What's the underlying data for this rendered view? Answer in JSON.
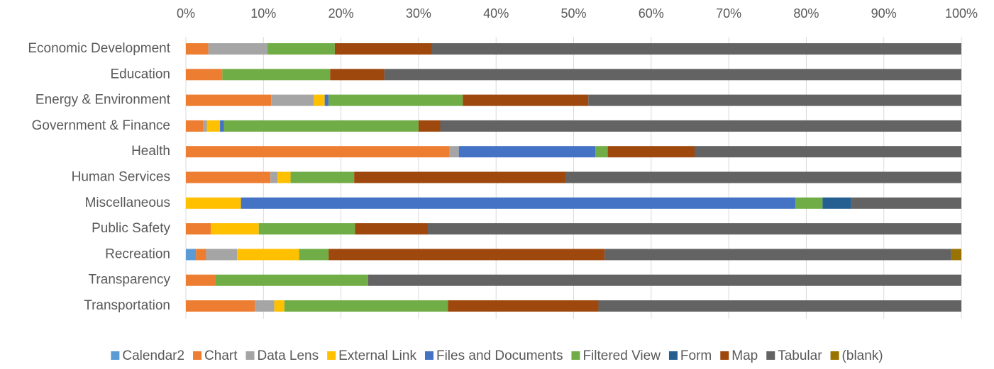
{
  "chart_data": {
    "type": "stacked_barh",
    "categories": [
      "Economic Development",
      "Education",
      "Energy & Environment",
      "Government & Finance",
      "Health",
      "Human Services",
      "Miscellaneous",
      "Public Safety",
      "Recreation",
      "Transparency",
      "Transportation"
    ],
    "series": [
      {
        "name": "Calendar2",
        "color": "#5b9bd5",
        "values": [
          0,
          0,
          0,
          0,
          0,
          0,
          0,
          0,
          1.3,
          0,
          0
        ]
      },
      {
        "name": "Chart",
        "color": "#ed7d31",
        "values": [
          2.9,
          4.7,
          11.0,
          2.2,
          34.0,
          10.9,
          0,
          3.2,
          1.3,
          3.8,
          8.9
        ]
      },
      {
        "name": "Data Lens",
        "color": "#a5a5a5",
        "values": [
          7.6,
          0,
          5.5,
          0.5,
          1.2,
          0.9,
          0,
          0,
          4.0,
          0,
          2.5
        ]
      },
      {
        "name": "External Link",
        "color": "#ffc000",
        "values": [
          0,
          0,
          1.4,
          1.7,
          0,
          1.7,
          7.1,
          6.2,
          8.0,
          0,
          1.3
        ]
      },
      {
        "name": "Files and Documents",
        "color": "#4472c4",
        "values": [
          0,
          0,
          0.5,
          0.5,
          17.6,
          0,
          71.5,
          0,
          0,
          0,
          0
        ]
      },
      {
        "name": "Filtered View",
        "color": "#70ad47",
        "values": [
          8.7,
          13.9,
          17.3,
          25.1,
          1.6,
          8.2,
          3.5,
          12.4,
          3.8,
          19.7,
          21.1
        ]
      },
      {
        "name": "Form",
        "color": "#255e91",
        "values": [
          0,
          0,
          0,
          0,
          0,
          0,
          3.7,
          0,
          0,
          0,
          0
        ]
      },
      {
        "name": "Map",
        "color": "#9e480e",
        "values": [
          12.5,
          7.0,
          16.2,
          2.8,
          11.2,
          27.3,
          0,
          9.4,
          35.6,
          0,
          19.4
        ]
      },
      {
        "name": "Tabular",
        "color": "#636363",
        "values": [
          68.3,
          74.4,
          48.1,
          67.2,
          34.4,
          51.0,
          14.2,
          68.8,
          44.7,
          76.5,
          46.8
        ]
      },
      {
        "name": "(blank)",
        "color": "#997300",
        "values": [
          0,
          0,
          0,
          0,
          0,
          0,
          0,
          0,
          1.3,
          0,
          0
        ]
      }
    ],
    "xlim": [
      0,
      100
    ],
    "xticks": [
      {
        "value": 0,
        "label": "0%"
      },
      {
        "value": 10,
        "label": "10%"
      },
      {
        "value": 20,
        "label": "20%"
      },
      {
        "value": 30,
        "label": "30%"
      },
      {
        "value": 40,
        "label": "40%"
      },
      {
        "value": 50,
        "label": "50%"
      },
      {
        "value": 60,
        "label": "60%"
      },
      {
        "value": 70,
        "label": "70%"
      },
      {
        "value": 80,
        "label": "80%"
      },
      {
        "value": 90,
        "label": "90%"
      },
      {
        "value": 100,
        "label": "100%"
      }
    ],
    "grid": true,
    "legend": "bottom"
  }
}
